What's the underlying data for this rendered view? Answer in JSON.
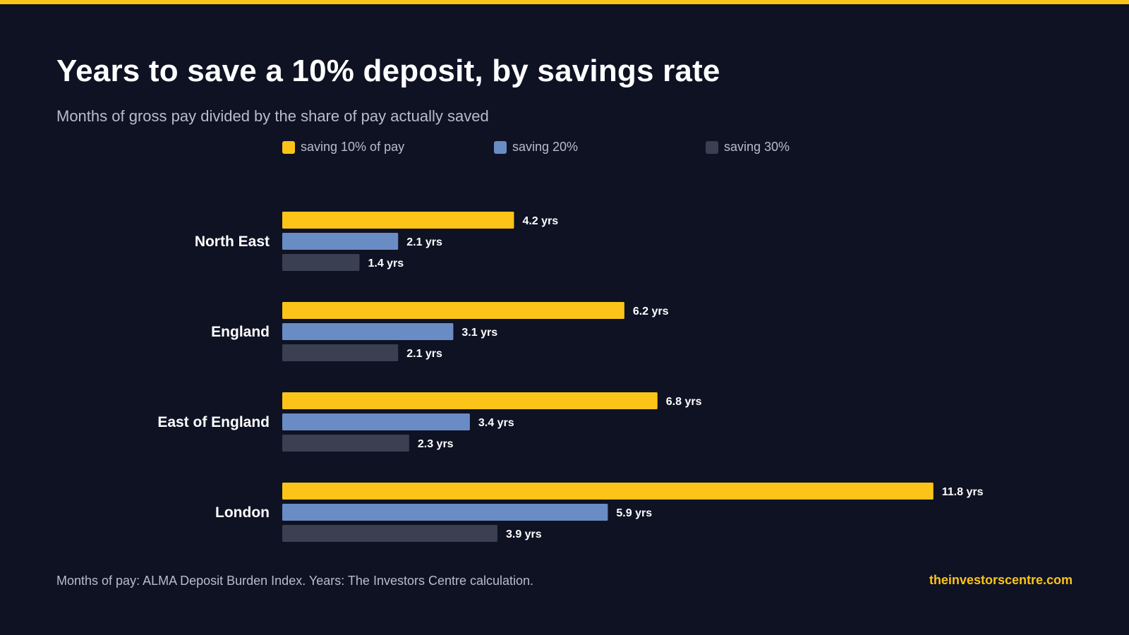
{
  "title": "Years to save a 10% deposit, by savings rate",
  "subtitle": "Months of gross pay divided by the share of pay actually saved",
  "colors": {
    "background": "#0f1223",
    "accent": "#fcc419",
    "series": [
      "#fcc419",
      "#6a8cc4",
      "#3a3f52"
    ]
  },
  "legend": [
    {
      "label": "saving 10% of pay",
      "color": "#fcc419"
    },
    {
      "label": "saving 20%",
      "color": "#6a8cc4"
    },
    {
      "label": "saving 30%",
      "color": "#3a3f52"
    }
  ],
  "chart_data": {
    "type": "bar",
    "orientation": "horizontal",
    "categories": [
      "North East",
      "England",
      "East of England",
      "London"
    ],
    "series": [
      {
        "name": "saving 10% of pay",
        "values": [
          4.2,
          6.2,
          6.8,
          11.8
        ]
      },
      {
        "name": "saving 20%",
        "values": [
          2.1,
          3.1,
          3.4,
          5.9
        ]
      },
      {
        "name": "saving 30%",
        "values": [
          1.4,
          2.1,
          2.3,
          3.9
        ]
      }
    ],
    "value_suffix": " yrs",
    "xlim": [
      0,
      13
    ],
    "grid": false,
    "legend_position": "top"
  },
  "footer": {
    "note": "Months of pay: ALMA Deposit Burden Index. Years: The Investors Centre calculation.",
    "brand": "theinvestorscentre.com"
  }
}
